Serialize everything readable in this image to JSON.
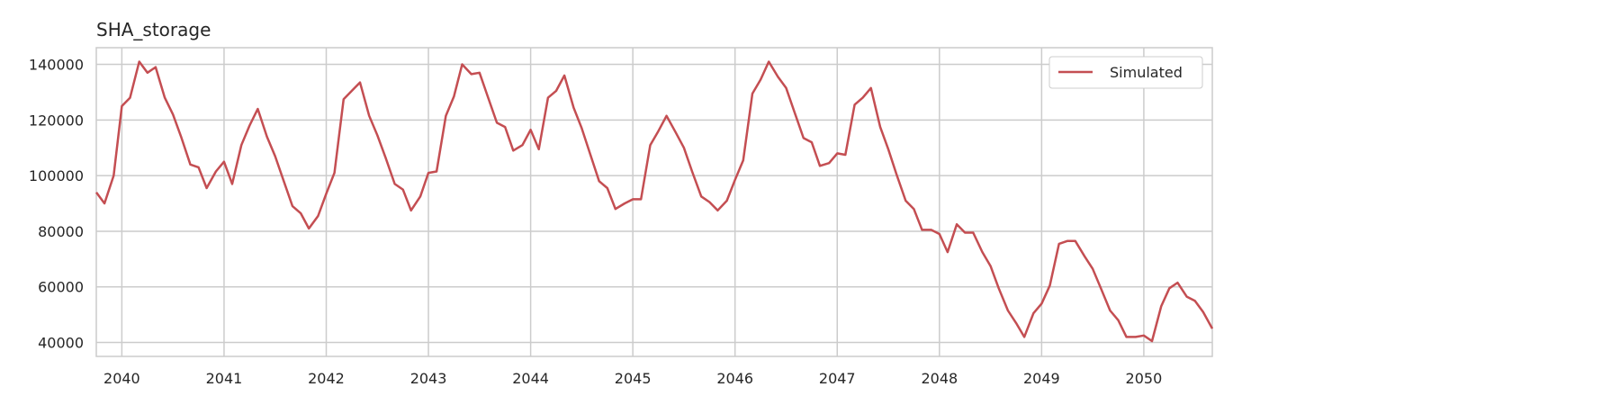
{
  "chart_data": {
    "type": "line",
    "title": "SHA_storage",
    "xlabel": "",
    "ylabel": "",
    "xlim": [
      2039.75,
      2050.67
    ],
    "ylim": [
      35000,
      146000
    ],
    "grid": true,
    "legend_position": "top-right",
    "x_ticks": [
      "2040",
      "2041",
      "2042",
      "2043",
      "2044",
      "2045",
      "2046",
      "2047",
      "2048",
      "2049",
      "2050"
    ],
    "y_ticks": [
      "40000",
      "60000",
      "80000",
      "100000",
      "120000",
      "140000"
    ],
    "series": [
      {
        "name": "Simulated",
        "color": "#c44e52",
        "x": [
          2039.75,
          2039.83,
          2039.92,
          2040.0,
          2040.08,
          2040.17,
          2040.25,
          2040.33,
          2040.42,
          2040.5,
          2040.58,
          2040.67,
          2040.75,
          2040.83,
          2040.92,
          2041.0,
          2041.08,
          2041.17,
          2041.25,
          2041.33,
          2041.42,
          2041.5,
          2041.58,
          2041.67,
          2041.75,
          2041.83,
          2041.92,
          2042.0,
          2042.08,
          2042.17,
          2042.25,
          2042.33,
          2042.42,
          2042.5,
          2042.58,
          2042.67,
          2042.75,
          2042.83,
          2042.92,
          2043.0,
          2043.08,
          2043.17,
          2043.25,
          2043.33,
          2043.42,
          2043.5,
          2043.58,
          2043.67,
          2043.75,
          2043.83,
          2043.92,
          2044.0,
          2044.08,
          2044.17,
          2044.25,
          2044.33,
          2044.42,
          2044.5,
          2044.58,
          2044.67,
          2044.75,
          2044.83,
          2044.92,
          2045.0,
          2045.08,
          2045.17,
          2045.25,
          2045.33,
          2045.42,
          2045.5,
          2045.58,
          2045.67,
          2045.75,
          2045.83,
          2045.92,
          2046.0,
          2046.08,
          2046.17,
          2046.25,
          2046.33,
          2046.42,
          2046.5,
          2046.58,
          2046.67,
          2046.75,
          2046.83,
          2046.92,
          2047.0,
          2047.08,
          2047.17,
          2047.25,
          2047.33,
          2047.42,
          2047.5,
          2047.58,
          2047.67,
          2047.75,
          2047.83,
          2047.92,
          2048.0,
          2048.08,
          2048.17,
          2048.25,
          2048.33,
          2048.42,
          2048.5,
          2048.58,
          2048.67,
          2048.75,
          2048.83,
          2048.92,
          2049.0,
          2049.08,
          2049.17,
          2049.25,
          2049.33,
          2049.42,
          2049.5,
          2049.58,
          2049.67,
          2049.75,
          2049.83,
          2049.92,
          2050.0,
          2050.08,
          2050.17,
          2050.25,
          2050.33,
          2050.42,
          2050.5,
          2050.58,
          2050.67
        ],
        "values": [
          94000,
          90000,
          100000,
          125000,
          128000,
          141000,
          137000,
          139000,
          128000,
          122000,
          114000,
          104000,
          103000,
          95500,
          101500,
          105000,
          97000,
          111000,
          118000,
          124000,
          114000,
          107000,
          98500,
          89000,
          86500,
          81000,
          85500,
          93500,
          101000,
          127500,
          130500,
          133500,
          121500,
          114500,
          106500,
          97000,
          95000,
          87500,
          92500,
          101000,
          101500,
          121500,
          128500,
          140000,
          136500,
          137000,
          128500,
          119000,
          117500,
          109000,
          111000,
          116500,
          109500,
          128000,
          130500,
          136000,
          124500,
          117000,
          108000,
          98000,
          95500,
          88000,
          90000,
          91500,
          91500,
          111000,
          116000,
          121500,
          115500,
          110000,
          101500,
          92500,
          90500,
          87500,
          91000,
          98500,
          105500,
          129500,
          134500,
          141000,
          135500,
          131500,
          123000,
          113500,
          112000,
          103500,
          104500,
          108000,
          107500,
          125500,
          128000,
          131500,
          117500,
          109500,
          100500,
          91000,
          88000,
          80500,
          80500,
          79000,
          72500,
          82500,
          79500,
          79500,
          72500,
          67500,
          59500,
          51500,
          47000,
          42000,
          50500,
          54000,
          60500,
          75500,
          76500,
          76500,
          71000,
          66500,
          59500,
          51500,
          48000,
          42000,
          42000,
          42500,
          40500,
          53000,
          59500,
          61500,
          56500,
          55000,
          51000,
          45000
        ]
      }
    ]
  }
}
